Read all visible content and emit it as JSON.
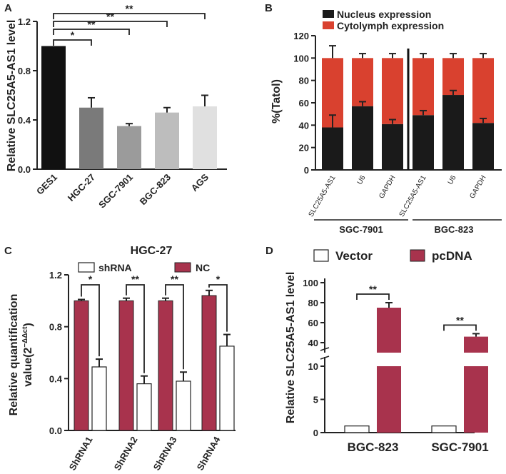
{
  "panels": {
    "a": "A",
    "b": "B",
    "c": "C",
    "d": "D"
  },
  "colors": {
    "black": "#1a1a1a",
    "red": "#d9412f",
    "maroon": "#a8334d",
    "greys": [
      "#111111",
      "#7a7a7a",
      "#9b9b9b",
      "#bdbdbd",
      "#e0e0e0"
    ]
  },
  "chart_data": [
    {
      "panel": "A",
      "type": "bar",
      "categories": [
        "GES1",
        "HGC-27",
        "SGC-7901",
        "BGC-823",
        "AGS"
      ],
      "values": [
        1.0,
        0.5,
        0.35,
        0.46,
        0.51
      ],
      "errors": [
        0.0,
        0.08,
        0.02,
        0.04,
        0.09
      ],
      "ylabel": "Relative SLC25A5-AS1 level",
      "ylim": [
        0,
        1.2
      ],
      "yticks": [
        "0.0",
        "0.4",
        "0.8",
        "1.2"
      ],
      "significance": [
        "*",
        "**",
        "**",
        "**"
      ]
    },
    {
      "panel": "B",
      "type": "bar",
      "stacked": true,
      "categories": [
        "SLC25A5-AS1",
        "U6",
        "GAPDH",
        "SLC25A5-AS1",
        "U6",
        "GAPDH"
      ],
      "groups": [
        "SGC-7901",
        "BGC-823"
      ],
      "series": [
        {
          "name": "Nucleus expression",
          "values": [
            38,
            57,
            41,
            49,
            67,
            42
          ],
          "errors": [
            11,
            4,
            4,
            4,
            4,
            4
          ]
        },
        {
          "name": "Cytolymph expression",
          "values": [
            62,
            43,
            59,
            51,
            33,
            58
          ],
          "errors": [
            11,
            4,
            4,
            4,
            4,
            4
          ]
        }
      ],
      "ylabel": "%(Tatol)",
      "ylim": [
        0,
        120
      ],
      "yticks": [
        "0",
        "20",
        "40",
        "60",
        "80",
        "100",
        "120"
      ]
    },
    {
      "panel": "C",
      "type": "bar",
      "title": "HGC-27",
      "categories": [
        "ShRNA1",
        "ShRNA2",
        "ShRNA3",
        "ShRNA4"
      ],
      "series": [
        {
          "name": "NC",
          "values": [
            1.0,
            1.0,
            1.0,
            1.04
          ],
          "errors": [
            0.01,
            0.02,
            0.02,
            0.04
          ]
        },
        {
          "name": "shRNA",
          "values": [
            0.49,
            0.36,
            0.38,
            0.65
          ],
          "errors": [
            0.06,
            0.06,
            0.07,
            0.09
          ]
        }
      ],
      "ylabel_line1": "Relative quantification",
      "ylabel_line2": "value(2",
      "ylabel_sup": "−ΔΔct",
      "ylabel_close": ")",
      "ylim": [
        0,
        1.2
      ],
      "yticks": [
        "0.0",
        "0.4",
        "0.8",
        "1.2"
      ],
      "significance": [
        "*",
        "**",
        "**",
        "*"
      ]
    },
    {
      "panel": "D",
      "type": "bar",
      "broken_axis": true,
      "categories": [
        "BGC-823",
        "SGC-7901"
      ],
      "series": [
        {
          "name": "Vector",
          "values": [
            1,
            1
          ],
          "errors": [
            0,
            0
          ]
        },
        {
          "name": "pcDNA",
          "values": [
            75,
            46
          ],
          "errors": [
            5,
            3
          ]
        }
      ],
      "ylabel": "Relative SLC25A5-AS1 level",
      "yticks_lower": [
        "0",
        "5",
        "10"
      ],
      "yticks_upper": [
        "40",
        "60",
        "80",
        "100"
      ],
      "significance": [
        "**",
        "**"
      ]
    }
  ]
}
